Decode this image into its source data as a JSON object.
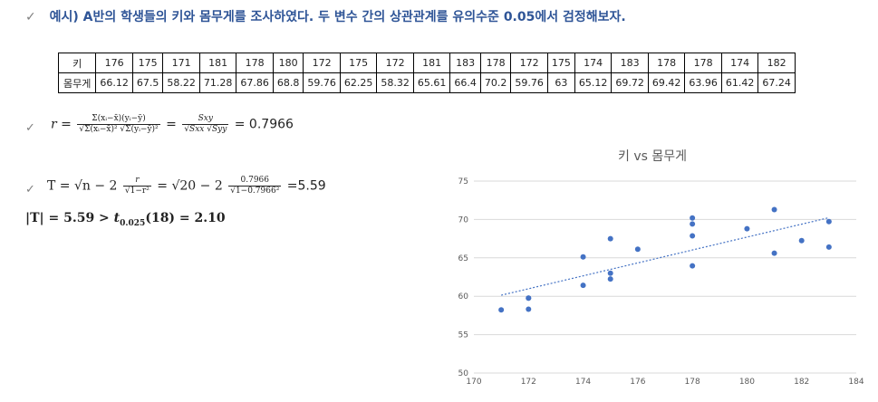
{
  "heading": {
    "check": "✓",
    "text": "예시) A반의 학생들의 키와 몸무게를 조사하였다. 두 변수 간의 상관관계를 유의수준 0.05에서 검정해보자."
  },
  "table": {
    "height_label": "키",
    "weight_label": "몸무게",
    "heights": [
      "176",
      "175",
      "171",
      "181",
      "178",
      "180",
      "172",
      "175",
      "172",
      "181",
      "183",
      "178",
      "172",
      "175",
      "174",
      "183",
      "178",
      "178",
      "174",
      "182"
    ],
    "weights": [
      "66.12",
      "67.5",
      "58.22",
      "71.28",
      "67.86",
      "68.8",
      "59.76",
      "62.25",
      "58.32",
      "65.61",
      "66.4",
      "70.2",
      "59.76",
      "63",
      "65.12",
      "69.72",
      "69.42",
      "63.96",
      "61.42",
      "67.24"
    ]
  },
  "formula_r": {
    "check": "✓",
    "lhs": "r =",
    "num1": "Σ(xᵢ−x̄)(yᵢ−ȳ)",
    "den1": "√Σ(xᵢ−x̄)² √Σ(yᵢ−ȳ)²",
    "eq": "=",
    "num2": "Sxy",
    "den2": "√Sxx √Syy",
    "result": "= 0.7966"
  },
  "formula_t": {
    "check": "✓",
    "lhs": "T = √n − 2",
    "num1": "r",
    "den1": "√1−r²",
    "mid": "= √20 − 2",
    "num2": "0.7966",
    "den2": "√1−0.7966²",
    "result": "=5.59"
  },
  "conclusion": {
    "abs_t": "|T| = 5.59 >",
    "t_symbol": "t",
    "t_sub": "0.025",
    "t_rest": "(18) = 2.10"
  },
  "chart_data": {
    "type": "scatter",
    "title": "키 vs 몸무게",
    "xlim": [
      170,
      184
    ],
    "ylim": [
      50,
      75
    ],
    "x_ticks": [
      170,
      172,
      174,
      176,
      178,
      180,
      182,
      184
    ],
    "y_ticks": [
      50,
      55,
      60,
      65,
      70,
      75
    ],
    "grid": "horizontal",
    "trendline": "linear",
    "colors": {
      "points": "#4472c4",
      "trend": "#4472c4",
      "grid": "#d9d9d9"
    },
    "points": [
      [
        176,
        66.12
      ],
      [
        175,
        67.5
      ],
      [
        171,
        58.22
      ],
      [
        181,
        71.28
      ],
      [
        178,
        67.86
      ],
      [
        180,
        68.8
      ],
      [
        172,
        59.76
      ],
      [
        175,
        62.25
      ],
      [
        172,
        58.32
      ],
      [
        181,
        65.61
      ],
      [
        183,
        66.4
      ],
      [
        178,
        70.2
      ],
      [
        172,
        59.76
      ],
      [
        175,
        63
      ],
      [
        174,
        65.12
      ],
      [
        183,
        69.72
      ],
      [
        178,
        69.42
      ],
      [
        178,
        63.96
      ],
      [
        174,
        61.42
      ],
      [
        182,
        67.24
      ]
    ]
  }
}
